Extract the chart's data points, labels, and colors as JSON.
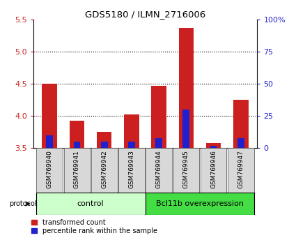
{
  "title": "GDS5180 / ILMN_2716006",
  "samples": [
    "GSM769940",
    "GSM769941",
    "GSM769942",
    "GSM769943",
    "GSM769944",
    "GSM769945",
    "GSM769946",
    "GSM769947"
  ],
  "transformed_counts": [
    4.5,
    3.93,
    3.75,
    4.03,
    4.47,
    5.37,
    3.58,
    4.25
  ],
  "percentile_ranks": [
    10,
    5,
    5,
    5,
    8,
    30,
    2,
    8
  ],
  "ylim_left": [
    3.5,
    5.5
  ],
  "ylim_right": [
    0,
    100
  ],
  "yticks_left": [
    3.5,
    4.0,
    4.5,
    5.0,
    5.5
  ],
  "yticks_right": [
    0,
    25,
    50,
    75,
    100
  ],
  "yticklabels_right": [
    "0",
    "25",
    "50",
    "75",
    "100%"
  ],
  "bar_color_red": "#cc2020",
  "bar_color_blue": "#2020cc",
  "bar_width": 0.55,
  "blue_bar_width": 0.25,
  "control_label": "control",
  "overexpression_label": "Bcl11b overexpression",
  "n_control": 4,
  "legend_red_label": "transformed count",
  "legend_blue_label": "percentile rank within the sample",
  "protocol_label": "protocol",
  "control_bg": "#ccffcc",
  "overexpression_bg": "#44dd44",
  "red_axis_color": "#cc2020",
  "blue_axis_color": "#2020cc",
  "base_value": 3.5,
  "grid_yticks": [
    4.0,
    4.5,
    5.0
  ]
}
